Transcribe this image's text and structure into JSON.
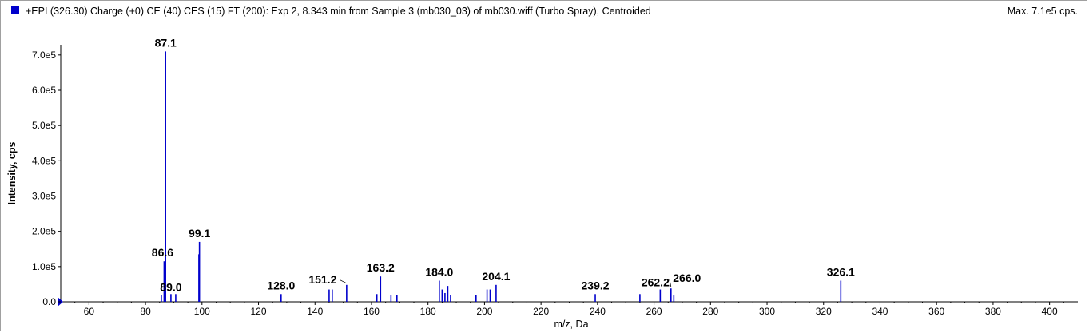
{
  "header": {
    "title": "+EPI (326.30) Charge (+0) CE (40) CES (15) FT (200): Exp 2, 8.343 min from Sample 3 (mb030_03) of mb030.wiff (Turbo Spray), Centroided",
    "max_label": "Max. 7.1e5 cps.",
    "marker_color": "#0000cc"
  },
  "chart_data": {
    "type": "bar",
    "title": "",
    "xlabel": "m/z, Da",
    "ylabel": "Intensity, cps",
    "xlim": [
      50,
      410
    ],
    "ylim": [
      0,
      720000
    ],
    "x_ticks": [
      60,
      80,
      100,
      120,
      140,
      160,
      180,
      200,
      220,
      240,
      260,
      280,
      300,
      320,
      340,
      360,
      380,
      400
    ],
    "y_ticks": [
      {
        "value": 0,
        "label": "0.0"
      },
      {
        "value": 100000,
        "label": "1.0e5"
      },
      {
        "value": 200000,
        "label": "2.0e5"
      },
      {
        "value": 300000,
        "label": "3.0e5"
      },
      {
        "value": 400000,
        "label": "4.0e5"
      },
      {
        "value": 500000,
        "label": "5.0e5"
      },
      {
        "value": 600000,
        "label": "6.0e5"
      },
      {
        "value": 700000,
        "label": "7.0e5"
      }
    ],
    "bar_color": "#0000cc",
    "grid": false,
    "peaks": [
      {
        "x": 85.6,
        "y": 20000
      },
      {
        "x": 86.6,
        "y": 115000,
        "label": "86.6"
      },
      {
        "x": 87.1,
        "y": 710000,
        "label": "87.1"
      },
      {
        "x": 89.0,
        "y": 22000,
        "label": "89.0"
      },
      {
        "x": 90.7,
        "y": 22000
      },
      {
        "x": 98.9,
        "y": 135000
      },
      {
        "x": 99.1,
        "y": 170000,
        "label": "99.1"
      },
      {
        "x": 128.0,
        "y": 22000,
        "label": "128.0"
      },
      {
        "x": 145.0,
        "y": 35000
      },
      {
        "x": 146.1,
        "y": 35000
      },
      {
        "x": 151.2,
        "y": 48000,
        "label": "151.2"
      },
      {
        "x": 161.9,
        "y": 22000
      },
      {
        "x": 163.2,
        "y": 72000,
        "label": "163.2"
      },
      {
        "x": 166.9,
        "y": 20000
      },
      {
        "x": 169.0,
        "y": 20000
      },
      {
        "x": 184.0,
        "y": 60000,
        "label": "184.0"
      },
      {
        "x": 185.0,
        "y": 35000
      },
      {
        "x": 186.0,
        "y": 25000
      },
      {
        "x": 187.0,
        "y": 45000
      },
      {
        "x": 188.0,
        "y": 20000
      },
      {
        "x": 197.0,
        "y": 20000
      },
      {
        "x": 200.9,
        "y": 35000
      },
      {
        "x": 202.0,
        "y": 35000
      },
      {
        "x": 204.1,
        "y": 48000,
        "label": "204.1"
      },
      {
        "x": 239.2,
        "y": 22000,
        "label": "239.2"
      },
      {
        "x": 255.0,
        "y": 22000
      },
      {
        "x": 262.2,
        "y": 35000,
        "label": "262.2"
      },
      {
        "x": 266.0,
        "y": 38000,
        "label": "266.0"
      },
      {
        "x": 267.0,
        "y": 18000
      },
      {
        "x": 326.1,
        "y": 60000,
        "label": "326.1"
      }
    ]
  }
}
